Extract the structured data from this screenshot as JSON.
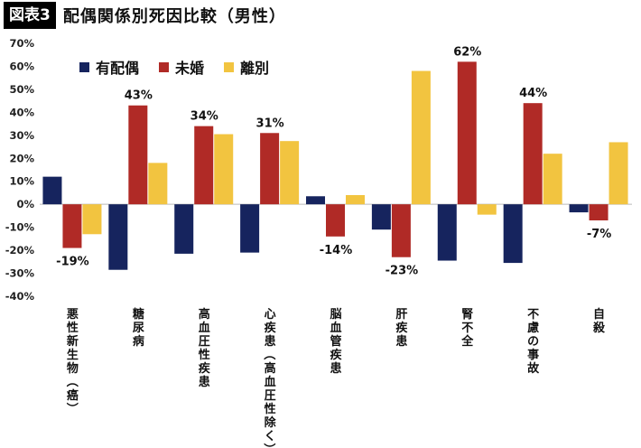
{
  "header": {
    "badge": "図表3",
    "title": "配偶関係別死因比較（男性）"
  },
  "chart_data": {
    "type": "bar",
    "title": "配偶関係別死因比較（男性）",
    "categories": [
      "悪性新生物（癌）",
      "糖尿病",
      "高血圧性疾患",
      "心疾患（高血圧性除く）",
      "脳血管疾患",
      "肝疾患",
      "腎不全",
      "不慮の事故",
      "自殺"
    ],
    "series": [
      {
        "name": "有配偶",
        "color": "#16245e",
        "values": [
          12,
          -28.5,
          -21.5,
          -21,
          3.5,
          -11,
          -24.5,
          -25.5,
          -3.5
        ]
      },
      {
        "name": "未婚",
        "color": "#b02a26",
        "values": [
          -19,
          43,
          34,
          31,
          -14,
          -23,
          62,
          44,
          -7
        ]
      },
      {
        "name": "離別",
        "color": "#f2c440",
        "values": [
          -13,
          18,
          30.5,
          27.5,
          4,
          58,
          -4.5,
          22,
          27
        ]
      }
    ],
    "ylim": [
      -40,
      70
    ],
    "yticks": [
      70,
      60,
      50,
      40,
      30,
      20,
      10,
      0,
      -10,
      -20,
      -30,
      -40
    ],
    "ytick_labels": [
      "70%",
      "60%",
      "50%",
      "40%",
      "30%",
      "20%",
      "10%",
      "0%",
      "-10%",
      "-20%",
      "-30%",
      "-40%"
    ],
    "annotations": [
      {
        "category": 0,
        "series": 1,
        "text": "-19%"
      },
      {
        "category": 1,
        "series": 1,
        "text": "43%"
      },
      {
        "category": 2,
        "series": 1,
        "text": "34%"
      },
      {
        "category": 3,
        "series": 1,
        "text": "31%"
      },
      {
        "category": 4,
        "series": 1,
        "text": "-14%"
      },
      {
        "category": 5,
        "series": 1,
        "text": "-23%"
      },
      {
        "category": 6,
        "series": 1,
        "text": "62%"
      },
      {
        "category": 7,
        "series": 1,
        "text": "44%"
      },
      {
        "category": 8,
        "series": 1,
        "text": "-7%"
      }
    ],
    "legend_position": "top-left"
  }
}
